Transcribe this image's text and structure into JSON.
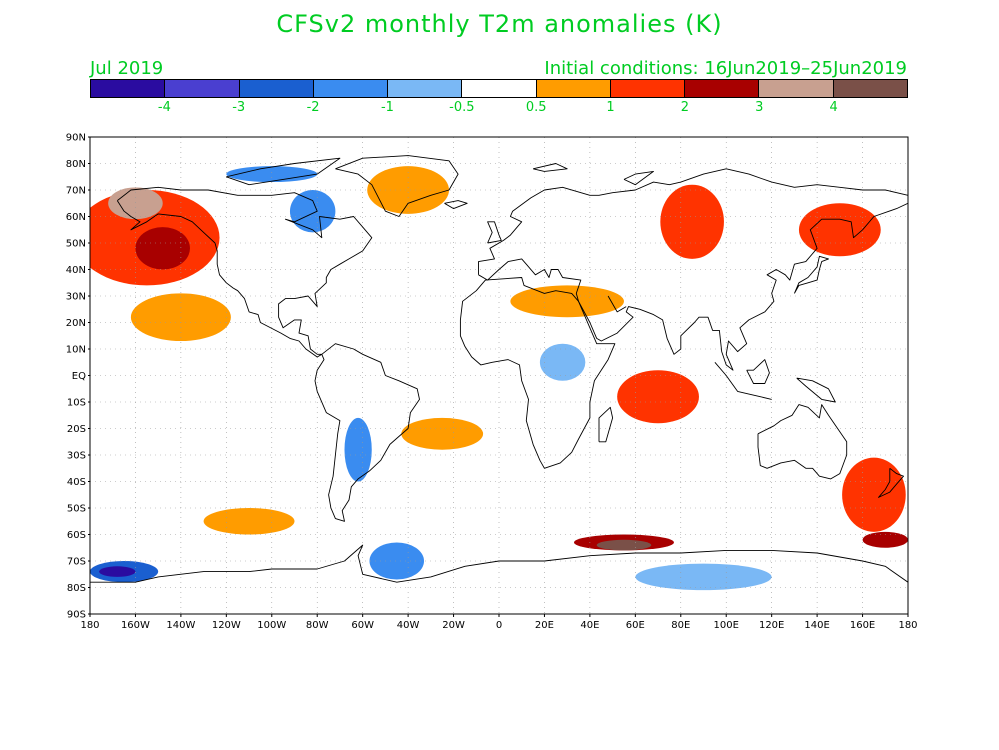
{
  "title": "CFSv2 monthly T2m anomalies (K)",
  "valid_month": "Jul 2019",
  "initial_conditions": "Initial conditions: 16Jun2019–25Jun2019",
  "legend": {
    "colors": [
      "#2a0ca0",
      "#4a3fd0",
      "#1a5fd0",
      "#3a8cf0",
      "#7ab8f5",
      "#ffffff",
      "#ff9c00",
      "#ff3300",
      "#a80000",
      "#c8a090",
      "#7a5048"
    ],
    "tick_labels": [
      "-4",
      "-3",
      "-2",
      "-1",
      "-0.5",
      "0.5",
      "1",
      "2",
      "3",
      "4"
    ]
  },
  "axes": {
    "lat_labels": [
      "90N",
      "80N",
      "70N",
      "60N",
      "50N",
      "40N",
      "30N",
      "20N",
      "10N",
      "EQ",
      "10S",
      "20S",
      "30S",
      "40S",
      "50S",
      "60S",
      "70S",
      "80S",
      "90S"
    ],
    "lon_labels": [
      "180",
      "160W",
      "140W",
      "120W",
      "100W",
      "80W",
      "60W",
      "40W",
      "20W",
      "0",
      "20E",
      "40E",
      "60E",
      "80E",
      "100E",
      "120E",
      "140E",
      "160E",
      "180"
    ]
  },
  "anomaly_regions": [
    {
      "name": "ne-pacific-warm",
      "lon": -155,
      "lat": 52,
      "rx": 32,
      "ry": 18,
      "level": "1"
    },
    {
      "name": "gulf-of-alaska-hot",
      "lon": -148,
      "lat": 48,
      "rx": 12,
      "ry": 8,
      "level": "2"
    },
    {
      "name": "alaska-very-hot",
      "lon": -160,
      "lat": 65,
      "rx": 12,
      "ry": 6,
      "level": "3"
    },
    {
      "name": "ne-pacific-subtropic-warm",
      "lon": -140,
      "lat": 22,
      "rx": 22,
      "ry": 9,
      "level": "0.5"
    },
    {
      "name": "canada-cold",
      "lon": -82,
      "lat": 62,
      "rx": 10,
      "ry": 8,
      "level": "-1"
    },
    {
      "name": "greenland-warm",
      "lon": -40,
      "lat": 70,
      "rx": 18,
      "ry": 9,
      "level": "0.5"
    },
    {
      "name": "siberia-warm",
      "lon": 85,
      "lat": 58,
      "rx": 14,
      "ry": 14,
      "level": "1"
    },
    {
      "name": "ne-asia-warm",
      "lon": 150,
      "lat": 55,
      "rx": 18,
      "ry": 10,
      "level": "1"
    },
    {
      "name": "north-africa-warm",
      "lon": 30,
      "lat": 28,
      "rx": 25,
      "ry": 6,
      "level": "0.5"
    },
    {
      "name": "central-africa-cold",
      "lon": 28,
      "lat": 5,
      "rx": 10,
      "ry": 7,
      "level": "-0.5"
    },
    {
      "name": "indian-ocean-warm",
      "lon": 70,
      "lat": -8,
      "rx": 18,
      "ry": 10,
      "level": "1"
    },
    {
      "name": "south-america-cold",
      "lon": -62,
      "lat": -28,
      "rx": 6,
      "ry": 12,
      "level": "-1"
    },
    {
      "name": "south-atlantic-warm",
      "lon": -25,
      "lat": -22,
      "rx": 18,
      "ry": 6,
      "level": "0.5"
    },
    {
      "name": "southern-ocean-hot",
      "lon": 55,
      "lat": -63,
      "rx": 22,
      "ry": 3,
      "level": "2"
    },
    {
      "name": "southern-ocean-extreme",
      "lon": 55,
      "lat": -64,
      "rx": 12,
      "ry": 2,
      "level": "4"
    },
    {
      "name": "tasman-warm",
      "lon": 165,
      "lat": -45,
      "rx": 14,
      "ry": 14,
      "level": "1"
    },
    {
      "name": "ross-sea-hot",
      "lon": 170,
      "lat": -62,
      "rx": 10,
      "ry": 3,
      "level": "2"
    },
    {
      "name": "antarctic-cold-west",
      "lon": -165,
      "lat": -74,
      "rx": 15,
      "ry": 4,
      "level": "-2"
    },
    {
      "name": "antarctic-very-cold",
      "lon": -168,
      "lat": -74,
      "rx": 8,
      "ry": 2,
      "level": "-4"
    },
    {
      "name": "weddell-cold",
      "lon": -45,
      "lat": -70,
      "rx": 12,
      "ry": 7,
      "level": "-1"
    },
    {
      "name": "east-antarctic-cold",
      "lon": 90,
      "lat": -76,
      "rx": 30,
      "ry": 5,
      "level": "-0.5"
    },
    {
      "name": "se-pacific-warm",
      "lon": -110,
      "lat": -55,
      "rx": 20,
      "ry": 5,
      "level": "0.5"
    },
    {
      "name": "arctic-cold",
      "lon": -100,
      "lat": 76,
      "rx": 20,
      "ry": 3,
      "level": "-1"
    }
  ]
}
